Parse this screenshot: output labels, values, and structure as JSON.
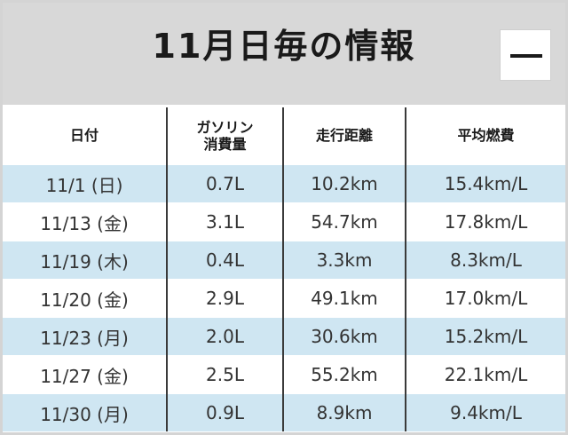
{
  "header": {
    "title": "11月日毎の情報",
    "collapse_icon": "minus-icon"
  },
  "table": {
    "columns": [
      {
        "line1": "日付",
        "line2": ""
      },
      {
        "line1": "ガソリン",
        "line2": "消費量"
      },
      {
        "line1": "走行距離",
        "line2": ""
      },
      {
        "line1": "平均燃費",
        "line2": ""
      }
    ],
    "rows": [
      {
        "date": "11/1 (日)",
        "fuel": "0.7L",
        "distance": "10.2km",
        "economy": "15.4km/L"
      },
      {
        "date": "11/13 (金)",
        "fuel": "3.1L",
        "distance": "54.7km",
        "economy": "17.8km/L"
      },
      {
        "date": "11/19 (木)",
        "fuel": "0.4L",
        "distance": "3.3km",
        "economy": "8.3km/L"
      },
      {
        "date": "11/20 (金)",
        "fuel": "2.9L",
        "distance": "49.1km",
        "economy": "17.0km/L"
      },
      {
        "date": "11/23 (月)",
        "fuel": "2.0L",
        "distance": "30.6km",
        "economy": "15.2km/L"
      },
      {
        "date": "11/27 (金)",
        "fuel": "2.5L",
        "distance": "55.2km",
        "economy": "22.1km/L"
      },
      {
        "date": "11/30 (月)",
        "fuel": "0.9L",
        "distance": "8.9km",
        "economy": "9.4km/L"
      }
    ]
  },
  "colors": {
    "stripe": "#cfe6f2",
    "header_bg": "#d8d8d8",
    "divider": "#3a3a3a"
  }
}
